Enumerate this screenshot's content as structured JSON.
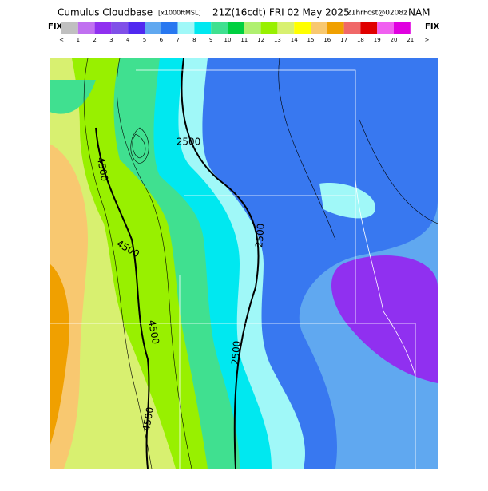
{
  "header": {
    "title": "Cumulus Cloudbase",
    "units": "[x1000ftMSL]",
    "valid": "21Z(16cdt) FRI 02 May 2025",
    "forecast": "21hrFcst@0208z",
    "model": "NAM"
  },
  "colorbar": {
    "left": "FIX",
    "right": "FIX",
    "colors": [
      "#c0c0c0",
      "#c070f0",
      "#9030f0",
      "#8050e8",
      "#5028f0",
      "#60a8f0",
      "#2878f0",
      "#a0f8f8",
      "#00e8f0",
      "#40e090",
      "#00d040",
      "#b0f070",
      "#98f000",
      "#d8f070",
      "#ffff00",
      "#f8c870",
      "#f0a000",
      "#f06868",
      "#e00000",
      "#f060f0",
      "#e000e0"
    ],
    "labels": [
      "<",
      "1",
      "2",
      "3",
      "4",
      "5",
      "6",
      "7",
      "8",
      "9",
      "10",
      "11",
      "12",
      "13",
      "14",
      "15",
      "16",
      "17",
      "18",
      "19",
      "20",
      "21",
      ">"
    ]
  },
  "map": {
    "contour_labels": [
      "4500",
      "2500",
      "4500",
      "2500",
      "4500",
      "2500",
      "4500"
    ]
  }
}
